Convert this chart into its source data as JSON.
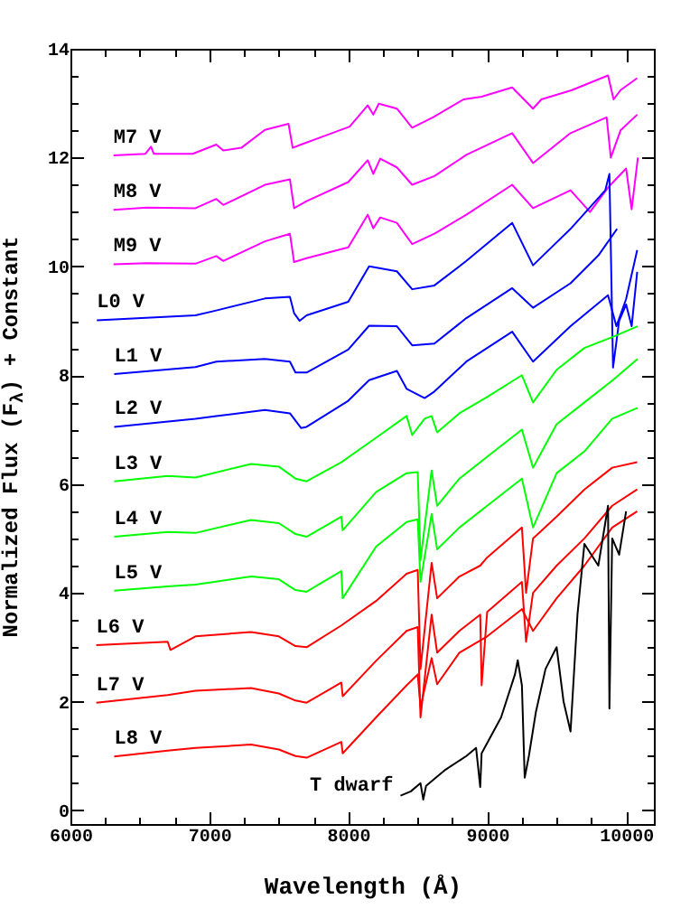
{
  "chart_data": {
    "type": "line",
    "xlabel": "Wavelength (Å)",
    "ylabel": "Normalized Flux (F$_{λ}$) + Constant",
    "xlim": [
      6000,
      10200
    ],
    "ylim": [
      -0.25,
      14
    ],
    "xticks": [
      6000,
      {
        "value": 6250,
        "label": null
      },
      {
        "value": 6500,
        "label": null
      },
      {
        "value": 6750,
        "label": null
      },
      7000,
      {
        "value": 7250,
        "label": null
      },
      {
        "value": 7500,
        "label": null
      },
      {
        "value": 7750,
        "label": null
      },
      8000,
      {
        "value": 8250,
        "label": null
      },
      {
        "value": 8500,
        "label": null
      },
      {
        "value": 8750,
        "label": null
      },
      9000,
      {
        "value": 9250,
        "label": null
      },
      {
        "value": 9500,
        "label": null
      },
      {
        "value": 9750,
        "label": null
      },
      10000
    ],
    "yticks": [
      0,
      {
        "value": 0.5,
        "label": null
      },
      {
        "value": 1,
        "label": null
      },
      {
        "value": 1.5,
        "label": null
      },
      2,
      {
        "value": 2.5,
        "label": null
      },
      {
        "value": 3,
        "label": null
      },
      {
        "value": 3.5,
        "label": null
      },
      4,
      {
        "value": 4.5,
        "label": null
      },
      {
        "value": 5,
        "label": null
      },
      {
        "value": 5.5,
        "label": null
      },
      6,
      {
        "value": 6.5,
        "label": null
      },
      {
        "value": 7,
        "label": null
      },
      {
        "value": 7.5,
        "label": null
      },
      8,
      {
        "value": 8.5,
        "label": null
      },
      {
        "value": 9,
        "label": null
      },
      {
        "value": 9.5,
        "label": null
      },
      10,
      {
        "value": 10.5,
        "label": null
      },
      {
        "value": 11,
        "label": null
      },
      {
        "value": 11.5,
        "label": null
      },
      12,
      {
        "value": 12.5,
        "label": null
      },
      {
        "value": 13,
        "label": null
      },
      {
        "value": 13.5,
        "label": null
      },
      14
    ],
    "series": [
      {
        "name": "M7 V",
        "color": "#ff00ff",
        "x": [
          6310,
          6540,
          6580,
          6600,
          6880,
          7050,
          7100,
          7230,
          7400,
          7570,
          7600,
          7660,
          7830,
          8010,
          8140,
          8180,
          8220,
          8350,
          8460,
          8610,
          8830,
          8960,
          9180,
          9330,
          9390,
          9610,
          9870,
          9910,
          9960,
          10080
        ],
        "values": [
          12.04,
          12.07,
          12.2,
          12.07,
          12.07,
          12.24,
          12.13,
          12.18,
          12.51,
          12.62,
          12.18,
          12.24,
          12.4,
          12.57,
          12.96,
          12.79,
          12.99,
          12.9,
          12.55,
          12.74,
          13.07,
          13.12,
          13.29,
          12.9,
          13.07,
          13.24,
          13.51,
          13.07,
          13.24,
          13.46
        ]
      },
      {
        "name": "M8 V",
        "color": "#ff00ff",
        "x": [
          6310,
          6550,
          6900,
          7050,
          7100,
          7400,
          7580,
          7610,
          7700,
          8000,
          8140,
          8180,
          8230,
          8350,
          8460,
          8620,
          8850,
          9180,
          9330,
          9600,
          9860,
          9890,
          9960,
          10080
        ],
        "values": [
          11.04,
          11.08,
          11.07,
          11.24,
          11.13,
          11.5,
          11.6,
          11.07,
          11.2,
          11.55,
          11.95,
          11.7,
          11.98,
          11.82,
          11.5,
          11.66,
          12.05,
          12.45,
          11.9,
          12.45,
          12.74,
          12.0,
          12.5,
          12.79
        ]
      },
      {
        "name": "M9 V",
        "color": "#ff00ff",
        "x": [
          6310,
          6550,
          6900,
          7050,
          7100,
          7400,
          7580,
          7610,
          7700,
          8000,
          8140,
          8180,
          8230,
          8350,
          8460,
          8620,
          8850,
          9180,
          9330,
          9600,
          9740,
          9870,
          10000,
          10040,
          10085
        ],
        "values": [
          10.04,
          10.06,
          10.05,
          10.19,
          10.1,
          10.46,
          10.6,
          10.08,
          10.15,
          10.35,
          10.95,
          10.7,
          10.9,
          10.8,
          10.41,
          10.6,
          10.95,
          11.5,
          11.07,
          11.4,
          11.0,
          11.45,
          11.8,
          11.05,
          12.0
        ]
      },
      {
        "name": "L0 V",
        "color": "#0000ff",
        "x": [
          6190,
          6900,
          7050,
          7400,
          7580,
          7610,
          7650,
          7700,
          8000,
          8150,
          8350,
          8460,
          8620,
          8850,
          9180,
          9330,
          9600,
          9850,
          9880,
          9906,
          9950,
          10000,
          10040,
          10080
        ],
        "values": [
          9.01,
          9.1,
          9.19,
          9.41,
          9.44,
          9.14,
          9.0,
          9.1,
          9.35,
          10.0,
          9.91,
          9.58,
          9.65,
          10.1,
          10.8,
          10.02,
          10.69,
          11.4,
          11.7,
          8.14,
          9.0,
          9.3,
          8.9,
          9.9
        ]
      },
      {
        "name": "L1 V",
        "color": "#0000ff",
        "x": [
          6315,
          6900,
          7050,
          7400,
          7580,
          7620,
          7700,
          8000,
          8150,
          8350,
          8460,
          8620,
          8850,
          9180,
          9330,
          9600,
          9800,
          9935
        ],
        "values": [
          8.02,
          8.15,
          8.25,
          8.3,
          8.25,
          8.05,
          8.05,
          8.47,
          8.91,
          8.9,
          8.55,
          8.58,
          9.05,
          9.6,
          9.24,
          9.69,
          10.2,
          10.69
        ]
      },
      {
        "name": "L2 V",
        "color": "#0000ff",
        "x": [
          6315,
          6900,
          7050,
          7400,
          7580,
          7660,
          7700,
          8000,
          8150,
          8350,
          8420,
          8550,
          8620,
          8850,
          9180,
          9330,
          9600,
          9870,
          9930,
          10000,
          10080
        ],
        "values": [
          7.05,
          7.2,
          7.25,
          7.36,
          7.3,
          7.03,
          7.05,
          7.53,
          7.91,
          8.08,
          7.75,
          7.58,
          7.7,
          8.25,
          8.8,
          8.25,
          8.9,
          9.47,
          8.9,
          9.4,
          10.3
        ]
      },
      {
        "name": "L3 V",
        "color": "#00ff00",
        "x": [
          6315,
          6700,
          6900,
          7300,
          7500,
          7620,
          7700,
          7950,
          8200,
          8420,
          8460,
          8550,
          8600,
          8640,
          8800,
          9000,
          9250,
          9330,
          9500,
          9700,
          9900,
          10083
        ],
        "values": [
          6.05,
          6.15,
          6.12,
          6.37,
          6.32,
          6.1,
          6.05,
          6.4,
          6.85,
          7.25,
          6.9,
          7.2,
          7.25,
          6.95,
          7.3,
          7.6,
          8.0,
          7.5,
          8.1,
          8.5,
          8.7,
          8.9
        ]
      },
      {
        "name": "L4 V",
        "color": "#00ff00",
        "x": [
          6315,
          6700,
          6900,
          7300,
          7500,
          7620,
          7700,
          7950,
          7960,
          8200,
          8420,
          8500,
          8520,
          8600,
          8640,
          8800,
          9000,
          9250,
          9330,
          9500,
          9700,
          9900,
          10083
        ],
        "values": [
          5.03,
          5.12,
          5.1,
          5.34,
          5.28,
          5.08,
          5.03,
          5.4,
          5.15,
          5.85,
          6.2,
          6.22,
          4.6,
          6.25,
          5.6,
          6.1,
          6.5,
          7.0,
          6.3,
          7.1,
          7.5,
          7.9,
          8.3
        ]
      },
      {
        "name": "L5 V",
        "color": "#00ff00",
        "x": [
          6315,
          6700,
          6900,
          7300,
          7500,
          7620,
          7700,
          7950,
          7960,
          8200,
          8420,
          8500,
          8520,
          8600,
          8640,
          8800,
          9000,
          9250,
          9330,
          9500,
          9700,
          9900,
          10083
        ],
        "values": [
          4.04,
          4.12,
          4.15,
          4.3,
          4.25,
          4.05,
          4.02,
          4.4,
          3.9,
          4.85,
          5.3,
          5.35,
          4.2,
          5.45,
          4.8,
          5.2,
          5.6,
          6.1,
          5.2,
          6.2,
          6.6,
          7.2,
          7.4
        ]
      },
      {
        "name": "L6 V",
        "color": "#ff0000",
        "x": [
          6186,
          6700,
          6720,
          6900,
          7300,
          7500,
          7620,
          7700,
          7950,
          8200,
          8420,
          8500,
          8520,
          8600,
          8640,
          8800,
          8950,
          9000,
          9250,
          9280,
          9330,
          9500,
          9700,
          9900,
          10080
        ],
        "values": [
          3.04,
          3.1,
          2.95,
          3.2,
          3.28,
          3.2,
          3.02,
          3.0,
          3.4,
          3.85,
          4.35,
          4.42,
          2.6,
          4.55,
          3.9,
          4.3,
          4.5,
          4.65,
          5.2,
          4.0,
          5.0,
          5.4,
          5.9,
          6.3,
          6.4
        ]
      },
      {
        "name": "L7 V",
        "color": "#ff0000",
        "x": [
          6186,
          6700,
          6900,
          7300,
          7500,
          7620,
          7700,
          7950,
          7960,
          8200,
          8420,
          8500,
          8520,
          8600,
          8640,
          8800,
          8950,
          8960,
          9000,
          9250,
          9280,
          9330,
          9500,
          9700,
          9900,
          10080
        ],
        "values": [
          1.98,
          2.12,
          2.2,
          2.25,
          2.15,
          2.02,
          1.98,
          2.35,
          2.1,
          2.75,
          3.3,
          3.37,
          1.71,
          3.6,
          2.9,
          3.3,
          3.6,
          2.3,
          3.65,
          4.2,
          3.1,
          4.0,
          4.5,
          5.0,
          5.6,
          5.9
        ]
      },
      {
        "name": "L8 V",
        "color": "#ff0000",
        "x": [
          6315,
          6700,
          6900,
          7300,
          7500,
          7620,
          7700,
          7950,
          7960,
          8200,
          8420,
          8500,
          8520,
          8600,
          8640,
          8800,
          9000,
          9250,
          9330,
          9500,
          9700,
          9900,
          10080
        ],
        "values": [
          0.99,
          1.1,
          1.15,
          1.21,
          1.12,
          1.0,
          0.97,
          1.26,
          1.05,
          1.71,
          2.3,
          2.5,
          1.9,
          2.8,
          2.32,
          2.9,
          3.2,
          3.7,
          3.3,
          3.9,
          4.5,
          5.2,
          5.5
        ]
      },
      {
        "name": "T dwarf",
        "color": "#000000",
        "x": [
          8376,
          8450,
          8520,
          8540,
          8560,
          8700,
          8850,
          8920,
          8950,
          8960,
          9100,
          9200,
          9220,
          9250,
          9270,
          9300,
          9350,
          9420,
          9500,
          9550,
          9600,
          9650,
          9700,
          9800,
          9870,
          9880,
          9900,
          9950,
          10000
        ],
        "values": [
          0.27,
          0.35,
          0.5,
          0.2,
          0.45,
          0.75,
          1.0,
          1.15,
          0.43,
          1.05,
          1.71,
          2.5,
          2.76,
          2.3,
          0.6,
          1.0,
          1.8,
          2.6,
          3.0,
          2.0,
          1.45,
          3.6,
          4.9,
          4.5,
          5.6,
          1.87,
          5.0,
          4.7,
          5.5
        ]
      }
    ]
  }
}
